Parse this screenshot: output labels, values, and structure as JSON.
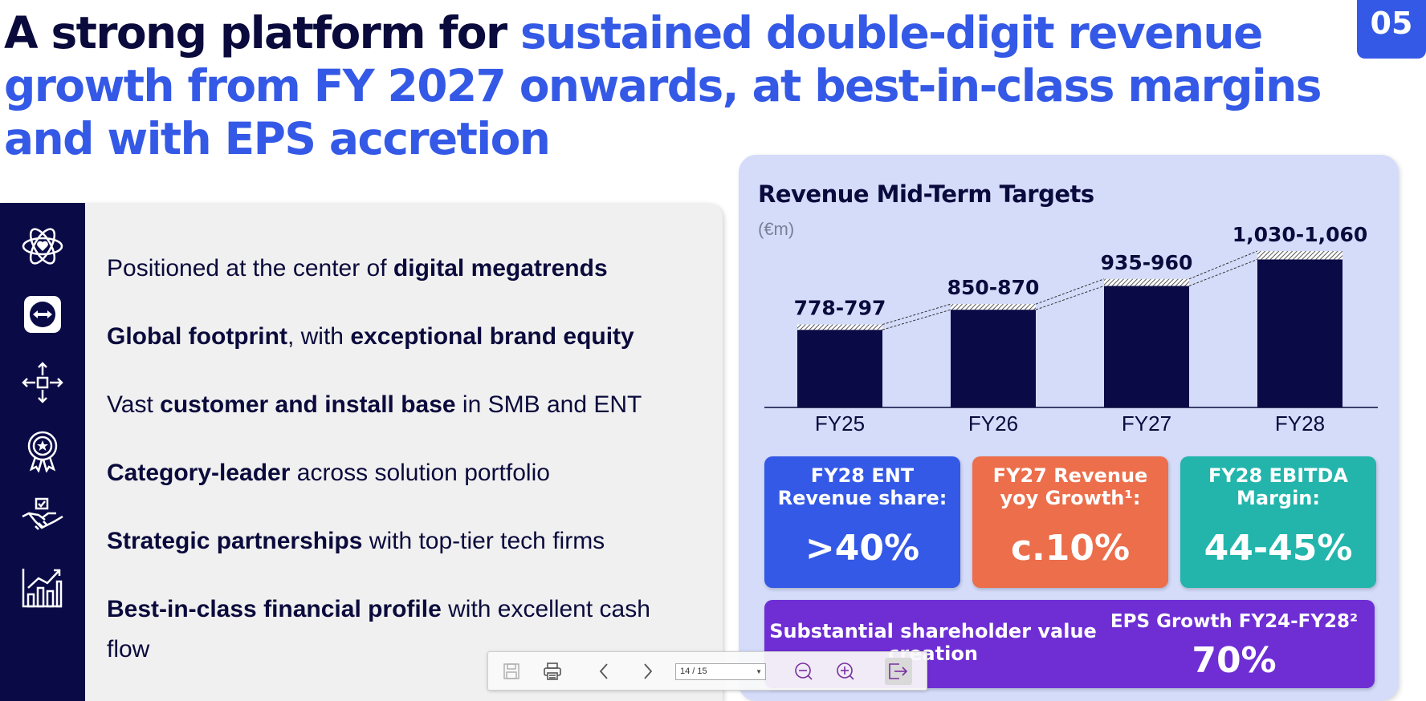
{
  "slide": {
    "title_dark": "A strong platform for ",
    "title_accent": "sustained double-digit revenue growth from FY 2027 onwards, at best-in-class margins and with EPS accretion",
    "number": "05"
  },
  "bullets": [
    {
      "icon": "atom-heart-icon",
      "pre": "Positioned at the center of ",
      "b1": "digital megatrends",
      "mid": "",
      "b2": "",
      "post": ""
    },
    {
      "icon": "teamviewer-logo-icon",
      "pre": "",
      "b1": "Global footprint",
      "mid": ", with ",
      "b2": "exceptional brand equity",
      "post": ""
    },
    {
      "icon": "network-nodes-icon",
      "pre": "Vast ",
      "b1": "customer and install base",
      "mid": " in SMB and ENT",
      "b2": "",
      "post": ""
    },
    {
      "icon": "award-badge-icon",
      "pre": "",
      "b1": "Category-leader",
      "mid": " across solution portfolio",
      "b2": "",
      "post": ""
    },
    {
      "icon": "handshake-icon",
      "pre": "",
      "b1": "Strategic partnerships",
      "mid": " with top-tier tech firms",
      "b2": "",
      "post": ""
    },
    {
      "icon": "growth-bar-chart-icon",
      "pre": "",
      "b1": "Best-in-class financial profile",
      "mid": " with excellent cash flow",
      "b2": "",
      "post": ""
    }
  ],
  "chart": {
    "title": "Revenue Mid-Term Targets",
    "unit": "(€m)"
  },
  "chart_data": {
    "type": "bar",
    "title": "Revenue Mid-Term Targets",
    "ylabel": "(€m)",
    "categories": [
      "FY25",
      "FY26",
      "FY27",
      "FY28"
    ],
    "series": [
      {
        "low": [
          778,
          850,
          935,
          1030
        ],
        "high": [
          797,
          870,
          960,
          1060
        ]
      }
    ],
    "data_labels": [
      "778-797",
      "850-870",
      "935-960",
      "1,030-1,060"
    ],
    "ylim": [
      500,
      1060
    ],
    "bar_color": "#0a0a47",
    "range_style": "hatched",
    "grid": false
  },
  "kpis": [
    {
      "label": "FY28 ENT Revenue share:",
      "value": ">40%",
      "color": "#3459e6"
    },
    {
      "label": "FY27 Revenue yoy Growth¹:",
      "value": "c.10%",
      "color": "#ec6e4b"
    },
    {
      "label": "FY28 EBITDA Margin:",
      "value": "44-45%",
      "color": "#23b5ab"
    }
  ],
  "eps": {
    "left_label": "Substantial shareholder value creation",
    "right_label": "EPS Growth FY24-FY28²",
    "value": "70%",
    "color": "#6e2ed4"
  },
  "toolbar": {
    "page_indicator": "14 / 15",
    "icons": [
      "save-icon",
      "print-icon",
      "previous-page-icon",
      "next-page-icon",
      "zoom-out-icon",
      "zoom-in-icon",
      "exit-icon"
    ]
  }
}
